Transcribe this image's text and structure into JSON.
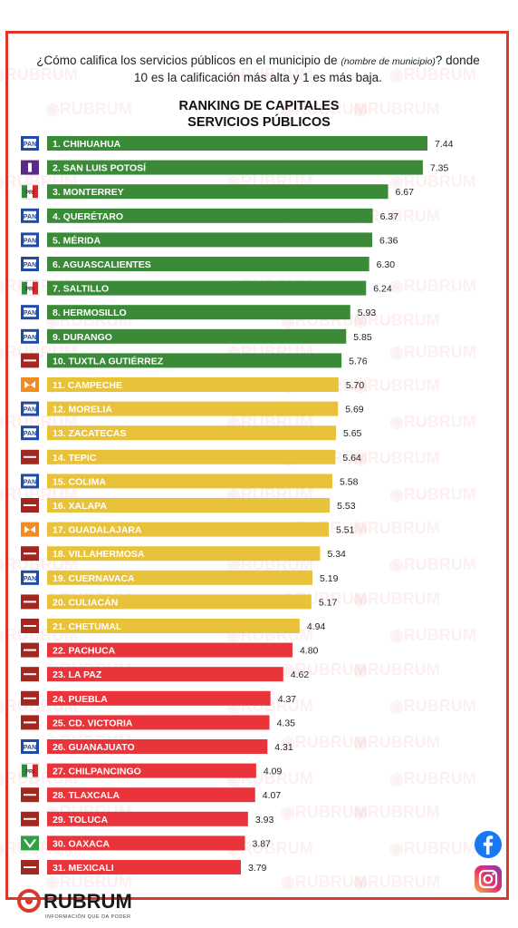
{
  "question": {
    "text_before": "¿Cómo califica los servicios públicos en el municipio de ",
    "placeholder": "(nombre de municipio)",
    "text_after": "? donde 10 es la calificación más alta y 1 es más baja."
  },
  "watermark_text": "RUBRUM",
  "footer": {
    "brand": "RUBRUM",
    "tagline": "INFORMACIÓN QUE DA PODER"
  },
  "social": {
    "facebook": "facebook-icon",
    "instagram": "instagram-icon"
  },
  "colors": {
    "green": "#3a8a38",
    "yellow": "#e8c23a",
    "red": "#e8343a",
    "frame": "#d9382c"
  },
  "chart_data": {
    "type": "bar",
    "orientation": "horizontal",
    "title": "RANKING DE CAPITALES",
    "subtitle": "SERVICIOS PÚBLICOS",
    "xlim": [
      0,
      7.44
    ],
    "categories": [
      "1. CHIHUAHUA",
      "2. SAN LUIS POTOSÍ",
      "3. MONTERREY",
      "4. QUERÉTARO",
      "5. MÉRIDA",
      "6. AGUASCALIENTES",
      "7. SALTILLO",
      "8. HERMOSILLO",
      "9. DURANGO",
      "10. TUXTLA GUTIÉRREZ",
      "11. CAMPECHE",
      "12. MORELIA",
      "13. ZACATECAS",
      "14. TEPIC",
      "15. COLIMA",
      "16. XALAPA",
      "17. GUADALAJARA",
      "18. VILLAHERMOSA",
      "19. CUERNAVACA",
      "20. CULIACÁN",
      "21. CHETUMAL",
      "22. PACHUCA",
      "23. LA PAZ",
      "24. PUEBLA",
      "25. CD. VICTORIA",
      "26. GUANAJUATO",
      "27. CHILPANCINGO",
      "28. TLAXCALA",
      "29. TOLUCA",
      "30. OAXACA",
      "31. MEXICALI"
    ],
    "values": [
      7.44,
      7.35,
      6.67,
      6.37,
      6.36,
      6.3,
      6.24,
      5.93,
      5.85,
      5.76,
      5.7,
      5.69,
      5.65,
      5.64,
      5.58,
      5.53,
      5.51,
      5.34,
      5.19,
      5.17,
      4.94,
      4.8,
      4.62,
      4.37,
      4.35,
      4.31,
      4.09,
      4.07,
      3.93,
      3.87,
      3.79
    ],
    "value_labels": [
      "7.44",
      "7.35",
      "6.67",
      "6.37",
      "6.36",
      "6.30",
      "6.24",
      "5.93",
      "5.85",
      "5.76",
      "5.70",
      "5.69",
      "5.65",
      "5.64",
      "5.58",
      "5.53",
      "5.51",
      "5.34",
      "5.19",
      "5.17",
      "4.94",
      "4.80",
      "4.62",
      "4.37",
      "4.35",
      "4.31",
      "4.09",
      "4.07",
      "3.93",
      "3.87",
      "3.79"
    ],
    "party_logos": [
      "pan",
      "pes",
      "pri",
      "pan",
      "pan",
      "pan",
      "pri",
      "pan",
      "pan",
      "morena",
      "mc",
      "pan",
      "pan",
      "morena",
      "pan",
      "morena",
      "mc",
      "morena",
      "pan",
      "morena",
      "morena",
      "morena",
      "morena",
      "morena",
      "morena",
      "pan",
      "pri",
      "morena",
      "morena",
      "pvem",
      "morena"
    ],
    "band_colors": [
      "green",
      "green",
      "green",
      "green",
      "green",
      "green",
      "green",
      "green",
      "green",
      "green",
      "yellow",
      "yellow",
      "yellow",
      "yellow",
      "yellow",
      "yellow",
      "yellow",
      "yellow",
      "yellow",
      "yellow",
      "yellow",
      "red",
      "red",
      "red",
      "red",
      "red",
      "red",
      "red",
      "red",
      "red",
      "red"
    ],
    "grid": false,
    "legend": "none"
  }
}
